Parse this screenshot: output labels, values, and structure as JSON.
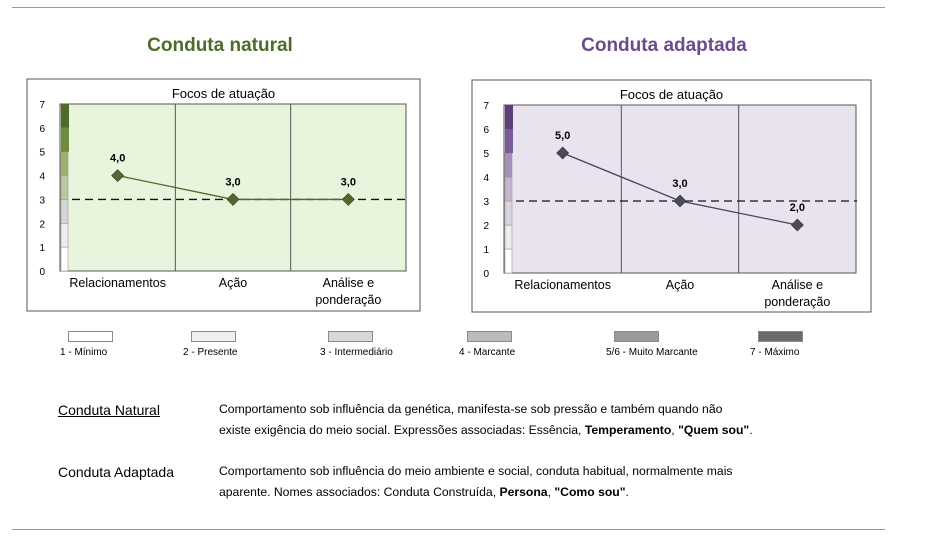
{
  "chart_data": [
    {
      "type": "line",
      "heading": "Conduta  natural",
      "title": "Focos de atuação",
      "categories": [
        "Relacionamentos",
        "Ação",
        "Análise e ponderação"
      ],
      "category_lines": [
        [
          "Relacionamentos"
        ],
        [
          "Ação"
        ],
        [
          "Análise e",
          "ponderação"
        ]
      ],
      "values": [
        4,
        3,
        3
      ],
      "data_labels": [
        "4,0",
        "3,0",
        "3,0"
      ],
      "reference_line": 3,
      "ylim": [
        0,
        7
      ],
      "yticks": [
        "0",
        "1",
        "2",
        "3",
        "4",
        "5",
        "6",
        "7"
      ],
      "scale_bar_colors": [
        "#ffffff",
        "#eeeeee",
        "#d6d6d6",
        "#b9c89e",
        "#9db06f",
        "#6e8c3e",
        "#4e6b2a"
      ],
      "colors": {
        "heading": "#4e6b2a",
        "background": "#e8f4dc",
        "line": "#4e6b2a",
        "marker": "#4e6b2a"
      }
    },
    {
      "type": "line",
      "heading": "Conduta  adaptada",
      "title": "Focos de atuação",
      "categories": [
        "Relacionamentos",
        "Ação",
        "Análise e ponderação"
      ],
      "category_lines": [
        [
          "Relacionamentos"
        ],
        [
          "Ação"
        ],
        [
          "Análise e",
          "ponderação"
        ]
      ],
      "values": [
        5,
        3,
        2
      ],
      "data_labels": [
        "5,0",
        "3,0",
        "2,0"
      ],
      "reference_line": 3,
      "ylim": [
        0,
        7
      ],
      "yticks": [
        "0",
        "1",
        "2",
        "3",
        "4",
        "5",
        "6",
        "7"
      ],
      "scale_bar_colors": [
        "#ffffff",
        "#eeeeee",
        "#d9d5de",
        "#c4b6d0",
        "#a48fba",
        "#7a5a97",
        "#5b3f78"
      ],
      "colors": {
        "heading": "#6b4b8c",
        "background": "#e8e3ef",
        "line": "#4a4163",
        "marker": "#4a4a5a"
      }
    }
  ],
  "legend": [
    {
      "label": "1 - Mínimo",
      "color": "#ffffff"
    },
    {
      "label": "2 - Presente",
      "color": "#f0f0f0"
    },
    {
      "label": "3 - Intermediário",
      "color": "#d8d8d8"
    },
    {
      "label": "4 - Marcante",
      "color": "#bcbcbc"
    },
    {
      "label": "5/6 - Muito Marcante",
      "color": "#9a9a9a"
    },
    {
      "label": "7 - Máximo",
      "color": "#6a6a6a"
    }
  ],
  "definitions": [
    {
      "term": "Conduta Natural",
      "line1": "Comportamento sob influência da genética, manifesta-se sob pressão e também quando não",
      "line2_plain": "existe exigência do meio social. Expressões associadas: Essência, ",
      "bold1": "Temperamento",
      "sep": ", ",
      "bold2": "\"Quem sou\"",
      "end": "."
    },
    {
      "term": "Conduta Adaptada",
      "line1": "Comportamento sob influência do meio ambiente e social, conduta habitual, normalmente mais",
      "line2_plain": "aparente. Nomes associados: Conduta Construída, ",
      "bold1": "Persona",
      "sep": ", ",
      "bold2": "\"Como sou\"",
      "end": "."
    }
  ]
}
